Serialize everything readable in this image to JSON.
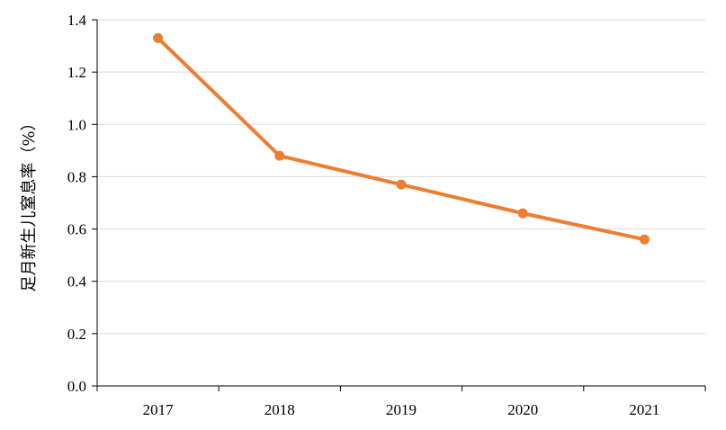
{
  "chart_data": {
    "type": "line",
    "title": "",
    "xlabel": "",
    "ylabel": "足月新生儿窒息率（%）",
    "categories": [
      "2017",
      "2018",
      "2019",
      "2020",
      "2021"
    ],
    "series": [
      {
        "values": [
          1.33,
          0.88,
          0.77,
          0.66,
          0.56
        ],
        "color": "#ED7D31"
      }
    ],
    "ylim": [
      0,
      1.4
    ],
    "yticks": [
      "0.0",
      "0.2",
      "0.4",
      "0.6",
      "0.8",
      "1.0",
      "1.2",
      "1.4"
    ],
    "grid": true,
    "legend": "none",
    "gridColor": "#D9D9D9",
    "axisColor": "#000000"
  }
}
